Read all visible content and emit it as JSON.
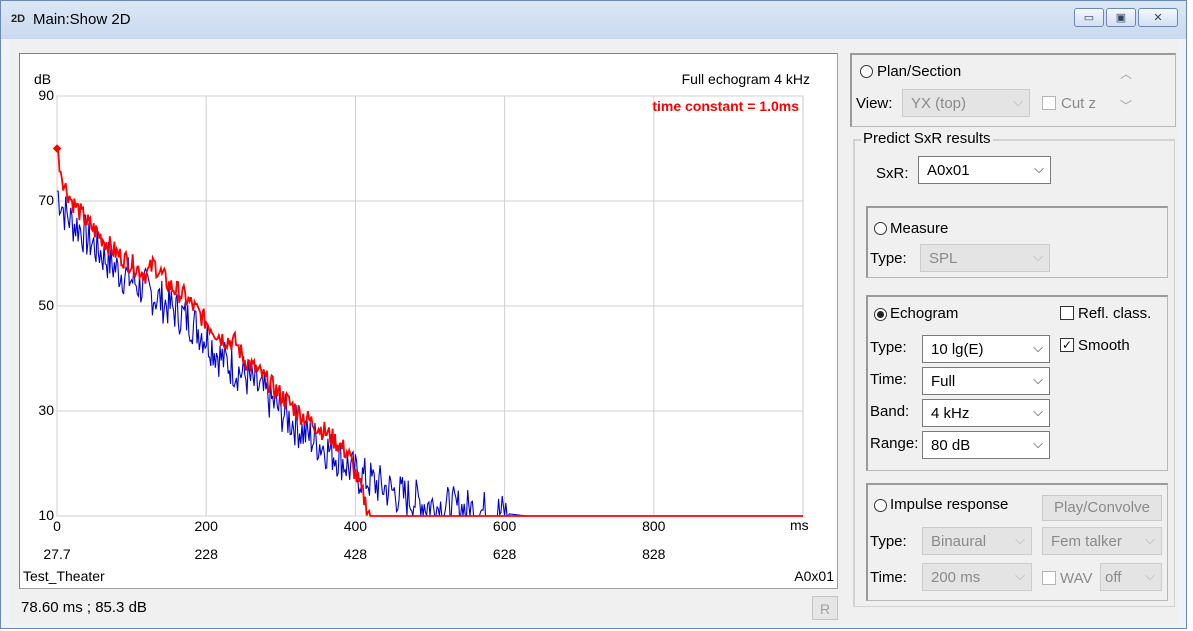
{
  "window": {
    "title": "Main:Show 2D",
    "app_icon": "2D"
  },
  "chart_data": {
    "type": "line",
    "title": "Full echogram  4 kHz",
    "annotation": "time constant = 1.0ms",
    "ylabel": "dB",
    "xlabel": "ms",
    "ylim": [
      10,
      90
    ],
    "xlim": [
      0,
      1000
    ],
    "y_ticks": [
      "90",
      "70",
      "50",
      "30",
      "10"
    ],
    "x_ticks": [
      "0",
      "200",
      "400",
      "600",
      "800"
    ],
    "x_ticks_secondary": [
      "27.7",
      "228",
      "428",
      "628",
      "828"
    ],
    "grid": true,
    "series": [
      {
        "color": "#0000cc",
        "x": [
          0,
          10,
          20,
          30,
          40,
          60,
          80,
          100,
          120,
          150,
          180,
          200,
          220,
          250,
          280,
          300,
          330,
          360,
          380,
          400,
          430,
          460,
          480,
          500,
          530,
          560,
          600,
          630
        ],
        "y": [
          72,
          68,
          66,
          65,
          63,
          60,
          57,
          55,
          53,
          50,
          47,
          44,
          40,
          37,
          33,
          30,
          26,
          23,
          21,
          18,
          16,
          14,
          13,
          12,
          11.5,
          11,
          10.5,
          10
        ]
      },
      {
        "color": "#ff0000",
        "x": [
          0,
          5,
          10,
          20,
          30,
          40,
          60,
          80,
          100,
          120,
          130,
          150,
          170,
          200,
          220,
          240,
          250,
          280,
          300,
          330,
          360,
          390,
          400,
          410,
          420,
          500,
          1000
        ],
        "y": [
          80,
          76,
          73,
          70,
          68,
          66,
          63,
          60,
          58,
          56,
          58,
          54,
          52,
          47,
          44,
          43,
          40,
          36,
          33,
          29,
          26,
          22,
          18,
          14,
          10,
          10,
          10
        ]
      }
    ],
    "footer_left": "Test_Theater",
    "footer_right": "A0x01"
  },
  "status": {
    "cursor_readout": "78.60 ms ; 85.3 dB",
    "r_button": "R"
  },
  "plan_section": {
    "label": "Plan/Section",
    "view_label": "View:",
    "view_value": "YX (top)",
    "cutz_label": "Cut z"
  },
  "predict": {
    "group_label": "Predict SxR results",
    "sxr_label": "SxR:",
    "sxr_value": "A0x01"
  },
  "measure": {
    "label": "Measure",
    "type_label": "Type:",
    "type_value": "SPL"
  },
  "echogram": {
    "label": "Echogram",
    "refl_label": "Refl. class.",
    "smooth_label": "Smooth",
    "smooth_check": "✓",
    "type_label": "Type:",
    "type_value": "10 lg(E)",
    "time_label": "Time:",
    "time_value": "Full",
    "band_label": "Band:",
    "band_value": "4 kHz",
    "range_label": "Range:",
    "range_value": "80 dB"
  },
  "impulse": {
    "label": "Impulse response",
    "play_button": "Play/Convolve",
    "type_label": "Type:",
    "type_value": "Binaural",
    "talker_value": "Fem talker",
    "time_label": "Time:",
    "time_value": "200 ms",
    "wav_label": "WAV",
    "wav_value": "off"
  }
}
